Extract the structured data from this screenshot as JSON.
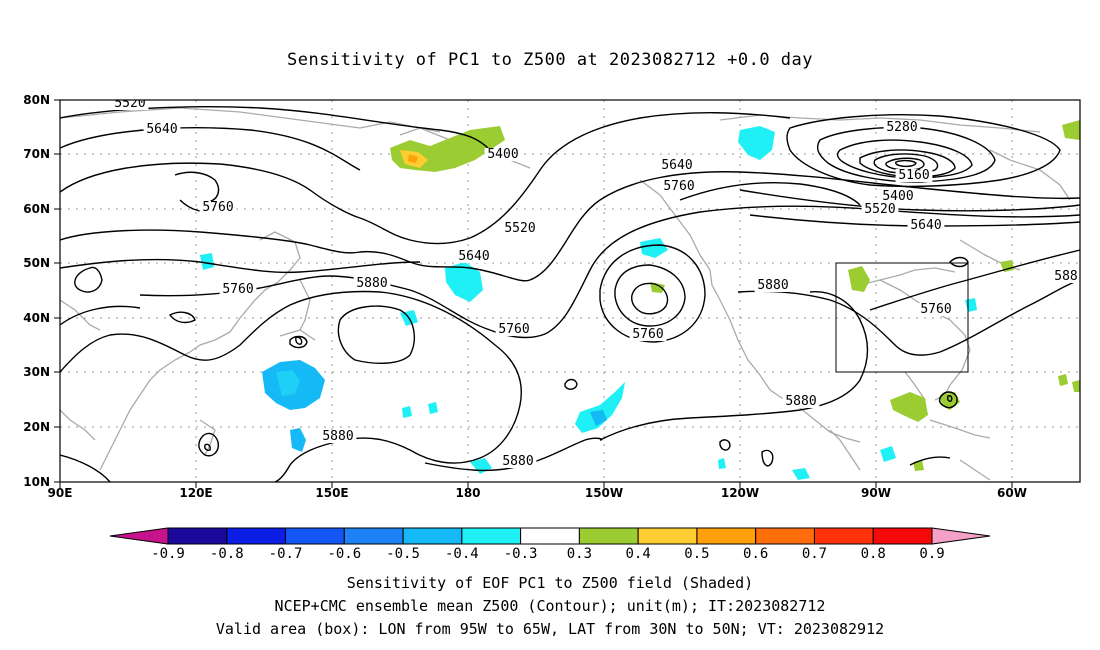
{
  "title": "Sensitivity of PC1 to Z500 at 2023082712 +0.0 day",
  "map": {
    "lon_ticks": [
      "90E",
      "120E",
      "150E",
      "180",
      "150W",
      "120W",
      "90W",
      "60W"
    ],
    "lat_ticks": [
      "80N",
      "70N",
      "60N",
      "50N",
      "40N",
      "30N",
      "20N",
      "10N"
    ],
    "grid": "dotted",
    "coastline_color": "#aaaaaa",
    "contour_color": "#000000",
    "box_color": "#000000",
    "contour_labels": [
      {
        "id": "c5520a",
        "text": "5520"
      },
      {
        "id": "c5640a",
        "text": "5640"
      },
      {
        "id": "c5760a",
        "text": "5760"
      },
      {
        "id": "c5400a",
        "text": "5400"
      },
      {
        "id": "c5520b",
        "text": "5520"
      },
      {
        "id": "c5640b",
        "text": "5640"
      },
      {
        "id": "c5760b",
        "text": "5760"
      },
      {
        "id": "c5880a",
        "text": "5880"
      },
      {
        "id": "c5760c",
        "text": "5760"
      },
      {
        "id": "c5760d",
        "text": "5760"
      },
      {
        "id": "c5880b",
        "text": "5880"
      },
      {
        "id": "c5880c",
        "text": "5880"
      },
      {
        "id": "c5880d",
        "text": "5880"
      },
      {
        "id": "c5640c",
        "text": "5640"
      },
      {
        "id": "c5760e",
        "text": "5760"
      },
      {
        "id": "c5880e",
        "text": "5880"
      },
      {
        "id": "c5280",
        "text": "5280"
      },
      {
        "id": "c5160",
        "text": "5160"
      },
      {
        "id": "c5400b",
        "text": "5400"
      },
      {
        "id": "c5520c",
        "text": "5520"
      },
      {
        "id": "c5640d",
        "text": "5640"
      },
      {
        "id": "c5760f",
        "text": "5760"
      },
      {
        "id": "c588x",
        "text": "588"
      }
    ]
  },
  "colorbar": {
    "labels": [
      "-0.9",
      "-0.8",
      "-0.7",
      "-0.6",
      "-0.5",
      "-0.4",
      "-0.3",
      "0.3",
      "0.4",
      "0.5",
      "0.6",
      "0.7",
      "0.8",
      "0.9"
    ],
    "colors": [
      "#1a0a9c",
      "#0a1ee6",
      "#1455f5",
      "#1e82f5",
      "#14b9f5",
      "#1ef0f5",
      "#ffffff",
      "#9bcd32",
      "#ffcd32",
      "#ffa00a",
      "#ff6e0a",
      "#ff320a",
      "#f50a0a"
    ],
    "low_extend_color": "#c8148c",
    "high_extend_color": "#f5a0c8"
  },
  "captions": {
    "line1": "Sensitivity of EOF PC1 to Z500 field (Shaded)",
    "line2": "NCEP+CMC ensemble mean Z500 (Contour); unit(m); IT:2023082712",
    "line3": "Valid area (box): LON from 95W to 65W, LAT from 30N to 50N; VT: 2023082912"
  }
}
